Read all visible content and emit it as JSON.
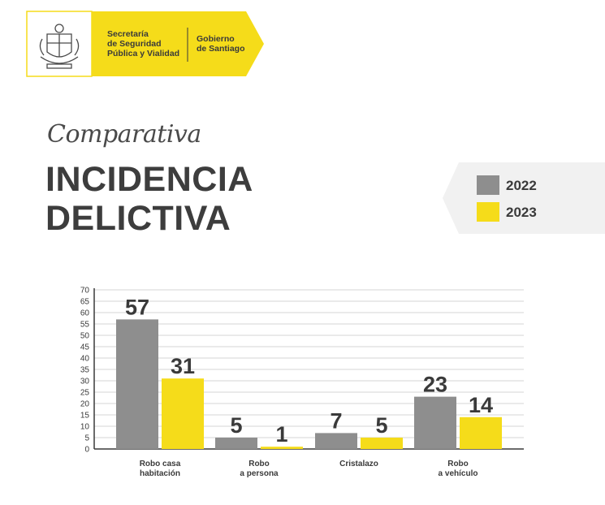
{
  "header": {
    "secretaria_lines": [
      "Secretaría",
      "de Seguridad",
      "Pública y Vialidad"
    ],
    "gobierno_lines": [
      "Gobierno",
      "de Santiago"
    ],
    "logo_icon": "coat-of-arms-icon",
    "accent_color": "#f5dc1a"
  },
  "subtitle": "Comparativa",
  "title_lines": [
    "INCIDENCIA",
    "DELICTIVA"
  ],
  "legend": [
    {
      "label": "2022",
      "color": "#8e8e8e"
    },
    {
      "label": "2023",
      "color": "#f5dc1a"
    }
  ],
  "chart_data": {
    "type": "bar",
    "categories": [
      [
        "Robo casa",
        "habitación"
      ],
      [
        "Robo",
        "a persona"
      ],
      [
        "Cristalazo"
      ],
      [
        "Robo",
        "a vehículo"
      ]
    ],
    "series": [
      {
        "name": "2022",
        "color": "#8e8e8e",
        "values": [
          57,
          5,
          7,
          23
        ]
      },
      {
        "name": "2023",
        "color": "#f5dc1a",
        "values": [
          31,
          1,
          5,
          14
        ]
      }
    ],
    "ylim": [
      0,
      70
    ],
    "yticks": [
      0,
      5,
      10,
      15,
      20,
      25,
      30,
      35,
      40,
      45,
      50,
      55,
      60,
      65,
      70
    ],
    "grid": true,
    "legend_position": "top-right"
  }
}
